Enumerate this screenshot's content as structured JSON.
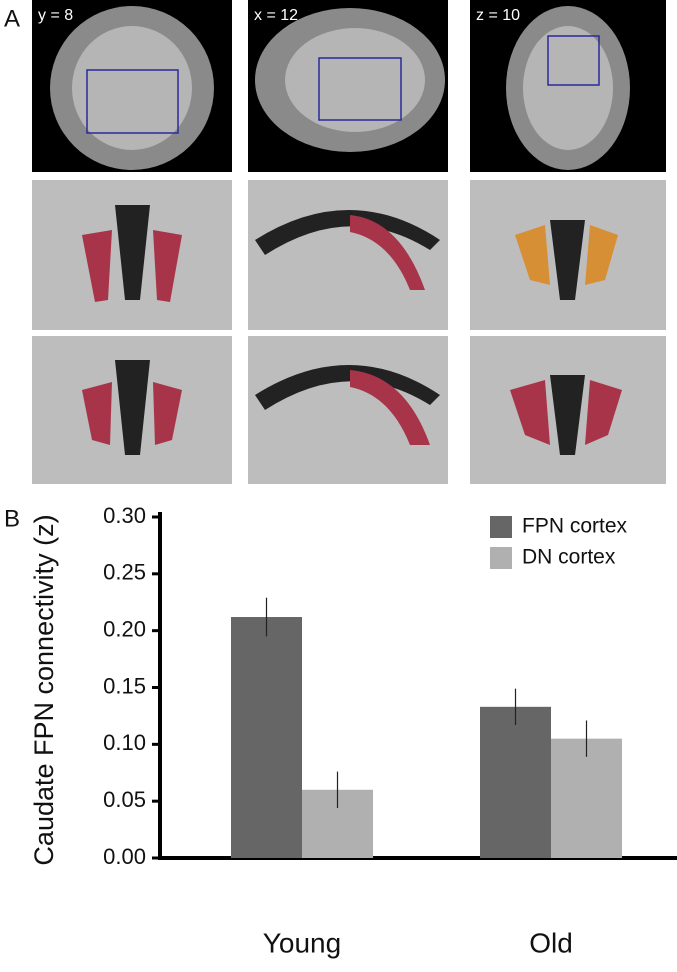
{
  "panel_a": {
    "label": "A",
    "slices": [
      "y = 8",
      "x = 12",
      "z = 10"
    ]
  },
  "chart_data": {
    "type": "bar",
    "panel_label": "B",
    "y_label": "Caudate FPN connectivity (z)",
    "categories": [
      "Young",
      "Old"
    ],
    "series": [
      {
        "name": "FPN cortex",
        "color": "#666666",
        "values": [
          0.212,
          0.133
        ],
        "errors": [
          0.017,
          0.016
        ]
      },
      {
        "name": "DN cortex",
        "color": "#b0b0b0",
        "values": [
          0.06,
          0.105
        ],
        "errors": [
          0.016,
          0.016
        ]
      }
    ],
    "ylim": [
      0,
      0.3
    ],
    "yticks": [
      {
        "value": 0,
        "label": "0.00"
      },
      {
        "value": 0.05,
        "label": "0.05"
      },
      {
        "value": 0.1,
        "label": "0.10"
      },
      {
        "value": 0.15,
        "label": "0.15"
      },
      {
        "value": 0.2,
        "label": "0.20"
      },
      {
        "value": 0.25,
        "label": "0.25"
      },
      {
        "value": 0.3,
        "label": "0.30"
      }
    ],
    "legend": "top-right"
  }
}
